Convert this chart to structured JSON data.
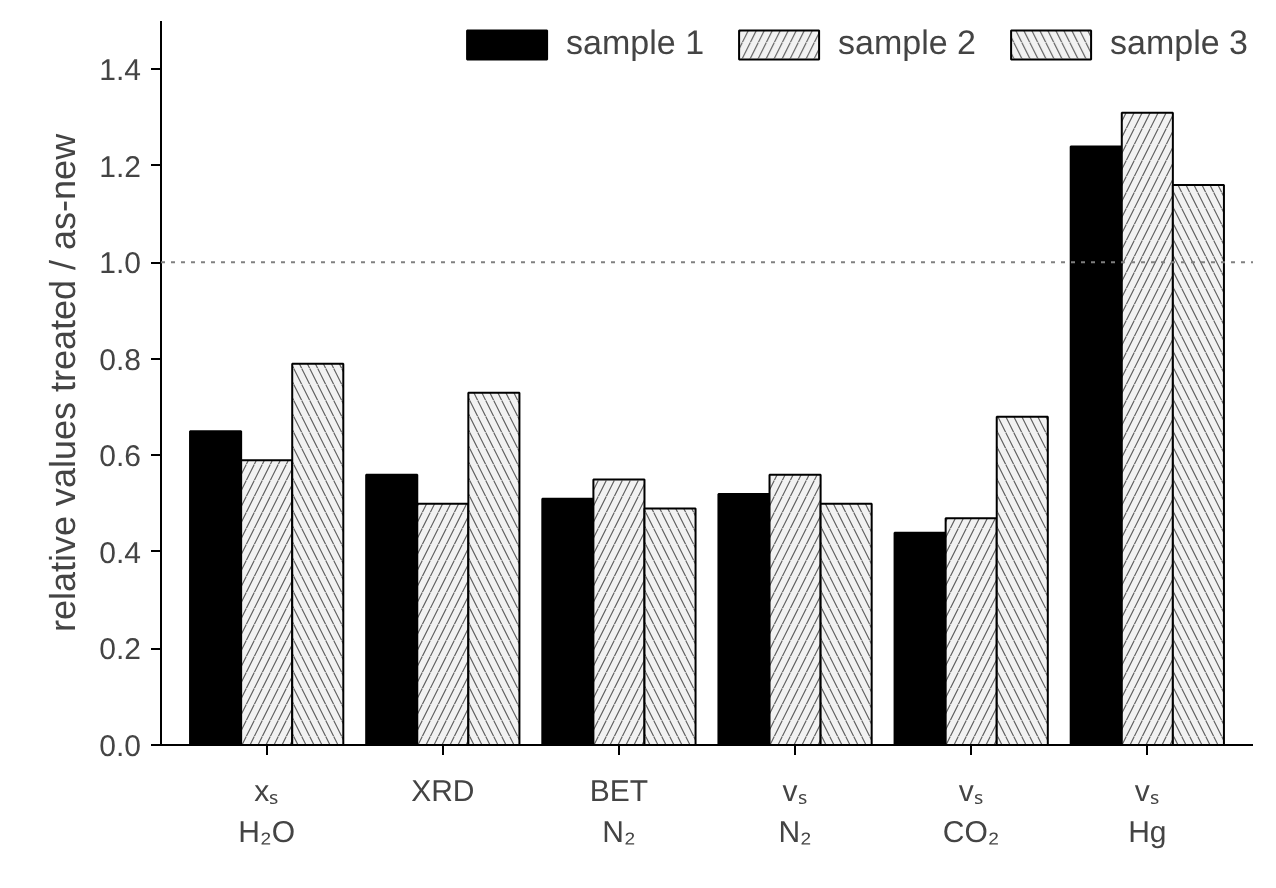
{
  "chart_data": {
    "type": "bar",
    "ylabel": "relative values treated / as-new",
    "categories": [
      "xₛ\nH₂O",
      "XRD",
      "BET\nN₂",
      "vₛ\nN₂",
      "vₛ\nCO₂",
      "vₛ\nHg"
    ],
    "series": [
      {
        "name": "sample 1",
        "color": "#000000",
        "values": [
          0.65,
          0.56,
          0.51,
          0.52,
          0.44,
          1.24
        ]
      },
      {
        "name": "sample 2",
        "color": "#f2f2f2",
        "values": [
          0.59,
          0.5,
          0.55,
          0.56,
          0.47,
          1.31
        ]
      },
      {
        "name": "sample 3",
        "color": "#f2f2f2",
        "values": [
          0.79,
          0.73,
          0.49,
          0.5,
          0.68,
          1.16
        ]
      }
    ],
    "ylim": [
      0,
      1.5
    ],
    "yticks": [
      {
        "value": 0,
        "label": "0.0"
      },
      {
        "value": 0.2,
        "label": "0.2"
      },
      {
        "value": 0.4,
        "label": "0.4"
      },
      {
        "value": 0.6,
        "label": "0.6"
      },
      {
        "value": 0.8,
        "label": "0.8"
      },
      {
        "value": 1.0,
        "label": "1.0"
      },
      {
        "value": 1.2,
        "label": "1.2"
      },
      {
        "value": 1.4,
        "label": "1.4"
      }
    ],
    "ref_lines": [
      {
        "axis": "y",
        "value": 1.0,
        "label": null,
        "color": "#808080",
        "line_style": "dotted"
      }
    ],
    "grid": false,
    "legend": "top"
  }
}
